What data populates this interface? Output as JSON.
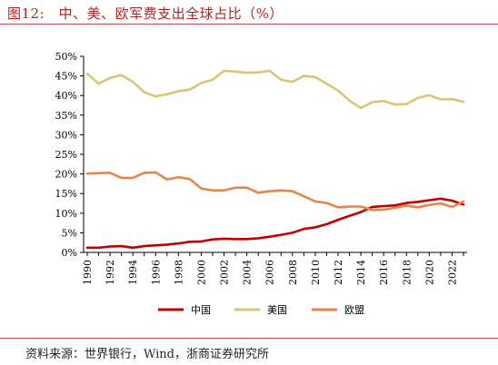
{
  "header": {
    "title": "图12:　中、美、欧军费支出全球占比（%）"
  },
  "footer": {
    "source": "资料来源：世界银行，Wind，浙商证券研究所"
  },
  "chart_data": {
    "type": "line",
    "title": "图12:　中、美、欧军费支出全球占比（%）",
    "xlabel": "",
    "ylabel": "",
    "x": [
      1990,
      1991,
      1992,
      1993,
      1994,
      1995,
      1996,
      1997,
      1998,
      1999,
      2000,
      2001,
      2002,
      2003,
      2004,
      2005,
      2006,
      2007,
      2008,
      2009,
      2010,
      2011,
      2012,
      2013,
      2014,
      2015,
      2016,
      2017,
      2018,
      2019,
      2020,
      2021,
      2022,
      2023
    ],
    "x_tick_labels": [
      "1990",
      "1992",
      "1994",
      "1996",
      "1998",
      "2000",
      "2002",
      "2004",
      "2006",
      "2008",
      "2010",
      "2012",
      "2014",
      "2016",
      "2018",
      "2020",
      "2022"
    ],
    "y_tick_labels": [
      "0%",
      "5%",
      "10%",
      "15%",
      "20%",
      "25%",
      "30%",
      "35%",
      "40%",
      "45%",
      "50%"
    ],
    "ylim": [
      0,
      50
    ],
    "grid": false,
    "legend_position": "bottom",
    "series": [
      {
        "name": "中国",
        "color": "#c00000",
        "values": [
          1.2,
          1.2,
          1.5,
          1.6,
          1.2,
          1.6,
          1.8,
          2.0,
          2.3,
          2.7,
          2.8,
          3.3,
          3.5,
          3.4,
          3.4,
          3.6,
          4.0,
          4.5,
          5.0,
          6.0,
          6.4,
          7.2,
          8.3,
          9.3,
          10.3,
          11.6,
          11.8,
          12.0,
          12.6,
          12.9,
          13.3,
          13.7,
          13.2,
          12.2
        ]
      },
      {
        "name": "美国",
        "color": "#d9c576",
        "values": [
          45.6,
          43.0,
          44.5,
          45.2,
          43.5,
          40.8,
          39.8,
          40.3,
          41.1,
          41.5,
          43.2,
          44.0,
          46.3,
          46.1,
          45.8,
          45.9,
          46.3,
          44.0,
          43.5,
          45.0,
          44.7,
          43.0,
          41.3,
          38.7,
          36.8,
          38.3,
          38.6,
          37.7,
          37.8,
          39.4,
          40.1,
          39.0,
          39.1,
          38.4
        ]
      },
      {
        "name": "欧盟",
        "color": "#e8844a",
        "values": [
          20.1,
          20.2,
          20.3,
          19.0,
          19.0,
          20.3,
          20.4,
          18.6,
          19.2,
          18.7,
          16.3,
          15.8,
          15.8,
          16.5,
          16.5,
          15.2,
          15.6,
          15.8,
          15.6,
          14.3,
          13.0,
          12.6,
          11.5,
          11.7,
          11.7,
          10.8,
          10.9,
          11.4,
          11.9,
          11.5,
          12.1,
          12.5,
          11.6,
          13.0
        ]
      }
    ]
  }
}
